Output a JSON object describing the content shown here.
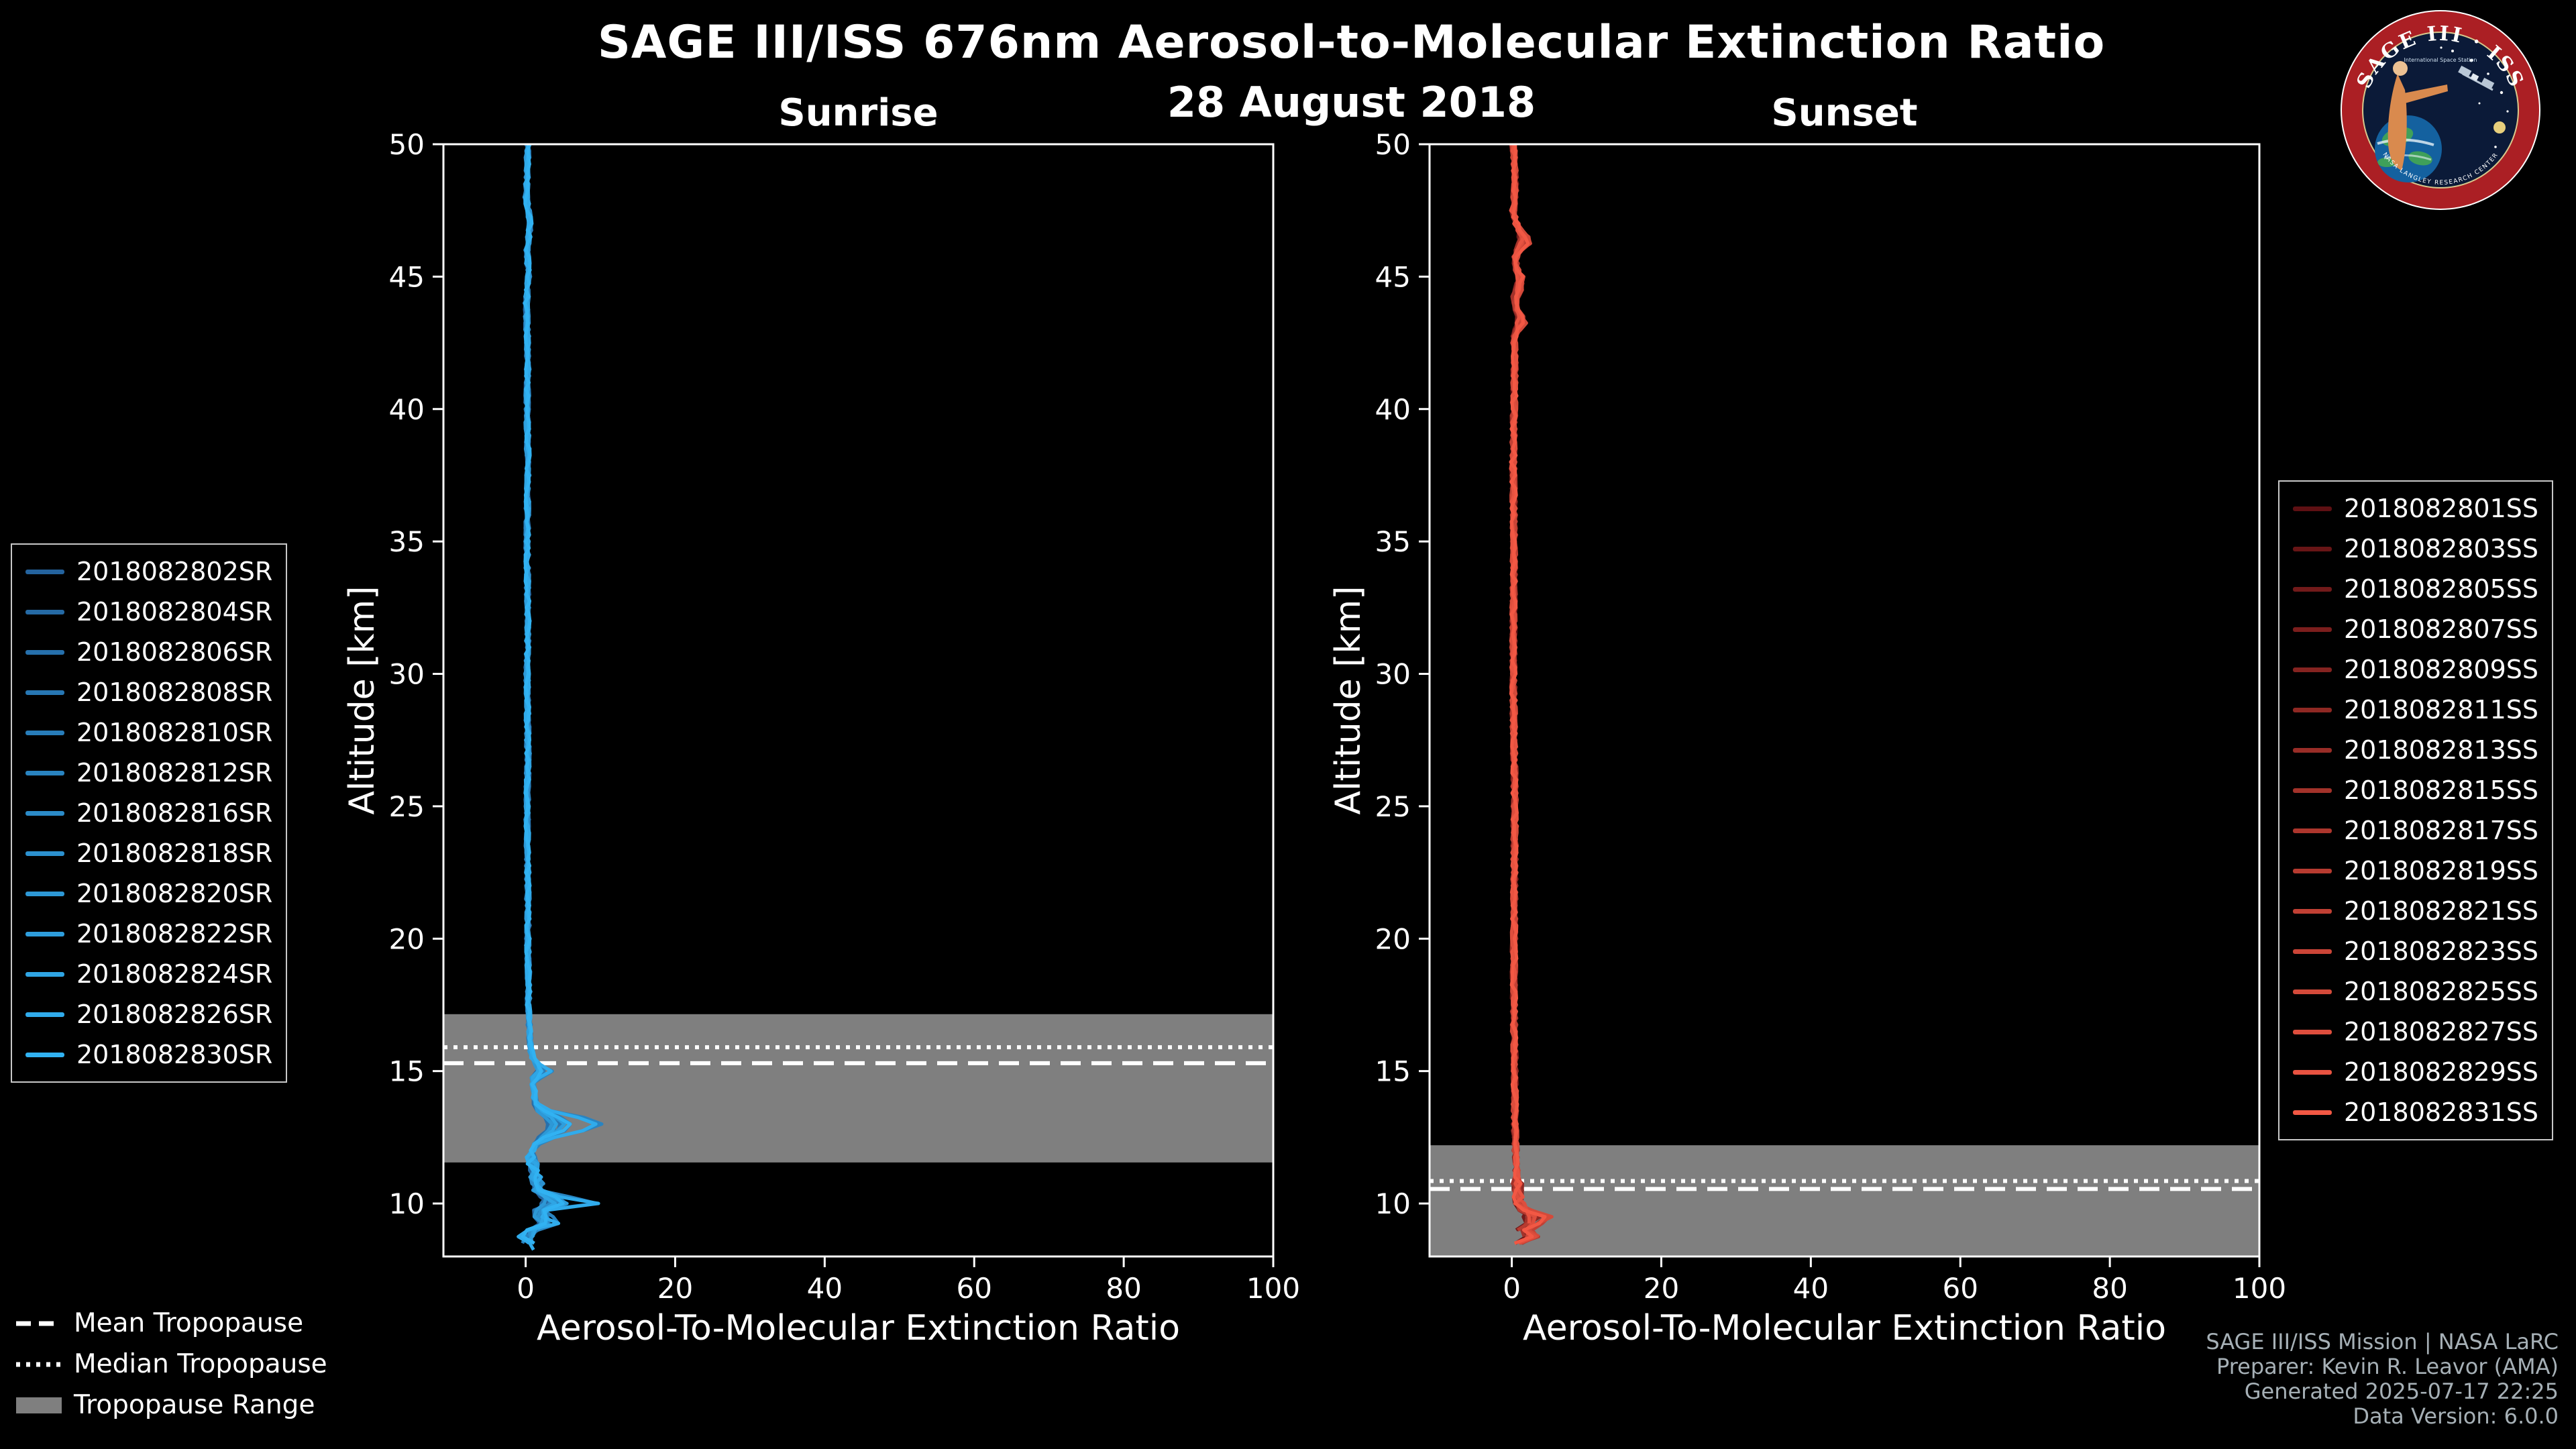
{
  "header": {
    "title": "SAGE III/ISS 676nm Aerosol-to-Molecular Extinction Ratio",
    "date": "28 August 2018"
  },
  "logo": {
    "title": "SAGE III · ISS",
    "subtitle": "International Space Station",
    "ring_text": "NASA LANGLEY RESEARCH CENTER",
    "ring_color": "#ab1f24",
    "field_color": "#0b1a38"
  },
  "tropopause_legend": {
    "mean": "Mean Tropopause",
    "median": "Median Tropopause",
    "range": "Tropopause Range",
    "band_color": "#7f7f7f"
  },
  "credits": {
    "line1": "SAGE III/ISS Mission | NASA LaRC",
    "line2": "Preparer: Kevin R. Leavor (AMA)",
    "line3": "Generated 2025-07-17 22:25",
    "line4": "Data Version: 6.0.0"
  },
  "chart_data": [
    {
      "panel": "sunrise",
      "type": "line",
      "title": "Sunrise",
      "xlabel": "Aerosol-To-Molecular Extinction Ratio",
      "ylabel": "Altitude [km]",
      "xlim": [
        -11,
        100
      ],
      "ylim": [
        8,
        50
      ],
      "xticks": [
        0,
        20,
        40,
        60,
        80,
        100
      ],
      "yticks": [
        10,
        15,
        20,
        25,
        30,
        35,
        40,
        45,
        50
      ],
      "grid": false,
      "legend_position": "left-outside",
      "tropopause": {
        "mean_km": 15.3,
        "median_km": 15.9,
        "range_km": [
          11.55,
          17.15
        ]
      },
      "color_start": "#24639e",
      "color_end": "#31b2f2",
      "noise": {
        "amp_hi": 0.3,
        "amp_lo": 0.8,
        "lo_below_km": 12,
        "step_km": 0.25,
        "seed": 42
      },
      "base_profile": [
        [
          50,
          0.3
        ],
        [
          48,
          0.1
        ],
        [
          47,
          0.6
        ],
        [
          46,
          0.2
        ],
        [
          45,
          0.4
        ],
        [
          44,
          0.1
        ],
        [
          42,
          0.3
        ],
        [
          40,
          0.2
        ],
        [
          38,
          0.3
        ],
        [
          35,
          0.2
        ],
        [
          32,
          0.3
        ],
        [
          30,
          0.2
        ],
        [
          27,
          0.3
        ],
        [
          25,
          0.2
        ],
        [
          22,
          0.3
        ],
        [
          20,
          0.3
        ],
        [
          18,
          0.4
        ],
        [
          17,
          0.4
        ],
        [
          16.2,
          0.6
        ],
        [
          15.6,
          0.8
        ],
        [
          15.1,
          1.6
        ],
        [
          14.7,
          0.7
        ],
        [
          14.2,
          1.2
        ],
        [
          13.6,
          1.1
        ],
        [
          13.2,
          2.2
        ],
        [
          12.8,
          2.6
        ],
        [
          12.4,
          1.4
        ],
        [
          12.0,
          0.9
        ],
        [
          11.6,
          0.9
        ],
        [
          11.2,
          1.1
        ],
        [
          10.8,
          1.6
        ],
        [
          10.4,
          1.6
        ],
        [
          10.0,
          1.8
        ],
        [
          9.7,
          1.2
        ],
        [
          9.4,
          1.6
        ],
        [
          9.1,
          0.8
        ],
        [
          8.8,
          1.0
        ],
        [
          8.5,
          0.5
        ],
        [
          8.2,
          0.3
        ]
      ],
      "bumps": [
        {
          "alt": 13.0,
          "width": 0.45,
          "amp": 7.5
        },
        {
          "alt": 10.05,
          "width": 0.22,
          "amp": 8.5
        },
        {
          "alt": 14.95,
          "width": 0.25,
          "amp": 2.2
        },
        {
          "alt": 9.25,
          "width": 0.3,
          "amp": 2.8
        },
        {
          "alt": 8.85,
          "width": 0.22,
          "amp": -2.2
        }
      ],
      "series": [
        {
          "label": "2018082802SR",
          "bottom_km": 8.6,
          "bump_scale": 0.15
        },
        {
          "label": "2018082804SR",
          "bottom_km": 8.3,
          "bump_scale": 0.2
        },
        {
          "label": "2018082806SR",
          "bottom_km": 9.1,
          "bump_scale": 0.1
        },
        {
          "label": "2018082808SR",
          "bottom_km": 8.4,
          "bump_scale": 0.3
        },
        {
          "label": "2018082810SR",
          "bottom_km": 8.8,
          "bump_scale": 0.5
        },
        {
          "label": "2018082812SR",
          "bottom_km": 8.3,
          "bump_scale": 1.0
        },
        {
          "label": "2018082816SR",
          "bottom_km": 9.4,
          "bump_scale": 0.2
        },
        {
          "label": "2018082818SR",
          "bottom_km": 8.5,
          "bump_scale": 0.35
        },
        {
          "label": "2018082820SR",
          "bottom_km": 9.0,
          "bump_scale": 0.15
        },
        {
          "label": "2018082822SR",
          "bottom_km": 8.4,
          "bump_scale": 0.4
        },
        {
          "label": "2018082824SR",
          "bottom_km": 8.7,
          "bump_scale": 0.25
        },
        {
          "label": "2018082826SR",
          "bottom_km": 8.2,
          "bump_scale": 0.95
        },
        {
          "label": "2018082830SR",
          "bottom_km": 8.5,
          "bump_scale": 0.45
        }
      ]
    },
    {
      "panel": "sunset",
      "type": "line",
      "title": "Sunset",
      "xlabel": "Aerosol-To-Molecular Extinction Ratio",
      "ylabel": "Altitude [km]",
      "xlim": [
        -11,
        100
      ],
      "ylim": [
        8,
        50
      ],
      "xticks": [
        0,
        20,
        40,
        60,
        80,
        100
      ],
      "yticks": [
        10,
        15,
        20,
        25,
        30,
        35,
        40,
        45,
        50
      ],
      "grid": false,
      "legend_position": "right-outside",
      "tropopause": {
        "mean_km": 10.55,
        "median_km": 10.85,
        "range_km": [
          8.0,
          12.2
        ]
      },
      "color_start": "#5e1013",
      "color_end": "#f25844",
      "noise": {
        "amp_hi": 0.35,
        "amp_lo": 0.7,
        "lo_below_km": 11,
        "step_km": 0.25,
        "seed": 7
      },
      "base_profile": [
        [
          50,
          0.2
        ],
        [
          48.5,
          0.5
        ],
        [
          47.5,
          0.2
        ],
        [
          46.5,
          1.0
        ],
        [
          45.8,
          0.3
        ],
        [
          45,
          0.8
        ],
        [
          44.2,
          0.2
        ],
        [
          43.5,
          0.9
        ],
        [
          42.8,
          0.3
        ],
        [
          42,
          0.4
        ],
        [
          40,
          0.3
        ],
        [
          38,
          0.2
        ],
        [
          35,
          0.3
        ],
        [
          30,
          0.2
        ],
        [
          25,
          0.4
        ],
        [
          20,
          0.3
        ],
        [
          17,
          0.3
        ],
        [
          15,
          0.4
        ],
        [
          13,
          0.4
        ],
        [
          12,
          0.5
        ],
        [
          11.5,
          0.6
        ],
        [
          11,
          0.7
        ],
        [
          10.5,
          0.8
        ],
        [
          10,
          1.0
        ],
        [
          9.6,
          1.4
        ],
        [
          9.3,
          1.8
        ],
        [
          9.0,
          1.0
        ],
        [
          8.7,
          1.2
        ],
        [
          8.4,
          0.5
        ]
      ],
      "bumps": [
        {
          "alt": 9.45,
          "width": 0.28,
          "amp": 4.5
        },
        {
          "alt": 8.85,
          "width": 0.22,
          "amp": 3.5
        },
        {
          "alt": 46.3,
          "width": 0.4,
          "amp": 1.6
        },
        {
          "alt": 44.6,
          "width": 0.45,
          "amp": 1.2
        },
        {
          "alt": 43.2,
          "width": 0.35,
          "amp": 1.0
        },
        {
          "alt": 9.1,
          "width": 0.15,
          "amp": -1.5
        }
      ],
      "series": [
        {
          "label": "2018082801SS",
          "bottom_km": 8.6,
          "bump_scale": 0.2
        },
        {
          "label": "2018082803SS",
          "bottom_km": 8.4,
          "bump_scale": 0.3
        },
        {
          "label": "2018082805SS",
          "bottom_km": 9.0,
          "bump_scale": 0.15
        },
        {
          "label": "2018082807SS",
          "bottom_km": 8.5,
          "bump_scale": 0.45
        },
        {
          "label": "2018082809SS",
          "bottom_km": 8.8,
          "bump_scale": 0.2
        },
        {
          "label": "2018082811SS",
          "bottom_km": 8.3,
          "bump_scale": 0.55
        },
        {
          "label": "2018082813SS",
          "bottom_km": 9.2,
          "bump_scale": 0.3
        },
        {
          "label": "2018082815SS",
          "bottom_km": 8.6,
          "bump_scale": 0.2
        },
        {
          "label": "2018082817SS",
          "bottom_km": 8.4,
          "bump_scale": 0.65
        },
        {
          "label": "2018082819SS",
          "bottom_km": 8.9,
          "bump_scale": 0.3
        },
        {
          "label": "2018082821SS",
          "bottom_km": 8.5,
          "bump_scale": 0.9
        },
        {
          "label": "2018082823SS",
          "bottom_km": 8.3,
          "bump_scale": 0.4
        },
        {
          "label": "2018082825SS",
          "bottom_km": 8.7,
          "bump_scale": 1.0
        },
        {
          "label": "2018082827SS",
          "bottom_km": 8.4,
          "bump_scale": 0.5
        },
        {
          "label": "2018082829SS",
          "bottom_km": 9.1,
          "bump_scale": 0.3
        },
        {
          "label": "2018082831SS",
          "bottom_km": 8.5,
          "bump_scale": 0.7
        }
      ]
    }
  ]
}
